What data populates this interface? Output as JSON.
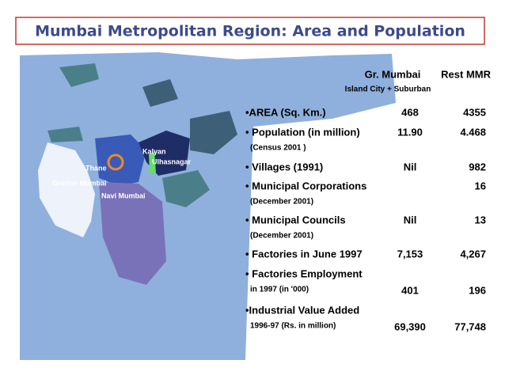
{
  "header": {
    "title": "Mumbai Metropolitan Region: Area and Population"
  },
  "map": {
    "labels": [
      "Greater Mumbai",
      "Thane",
      "Kalyan",
      "Ulhasnagar",
      "Navi Mumbai"
    ]
  },
  "table": {
    "columns": [
      "Gr. Mumbai",
      "Rest MMR"
    ],
    "column_note": "Island City + Suburban",
    "rows": [
      {
        "label": "•AREA (Sq. Km.)",
        "gr_mumbai": "468",
        "rest_mmr": "4355"
      },
      {
        "label": "• Population (in million)",
        "note": "(Census 2001 )",
        "gr_mumbai": "11.90",
        "rest_mmr": "4.468"
      },
      {
        "label": "• Villages (1991)",
        "gr_mumbai": "Nil",
        "rest_mmr": "982"
      },
      {
        "label": "• Municipal Corporations",
        "note": "(December 2001)",
        "rest_mmr": "16"
      },
      {
        "label": "• Municipal Councils",
        "note": "(December 2001)",
        "gr_mumbai": "Nil",
        "rest_mmr": "13"
      },
      {
        "label": "• Factories in June 1997",
        "gr_mumbai": "7,153",
        "rest_mmr": "4,267"
      },
      {
        "label": "• Factories Employment",
        "note": "in 1997 (in '000)",
        "gr_mumbai": "401",
        "rest_mmr": "196"
      },
      {
        "label": "•Industrial Value Added",
        "note": "1996-97 (Rs. in million)",
        "gr_mumbai": "69,390",
        "rest_mmr": "77,748"
      }
    ]
  }
}
